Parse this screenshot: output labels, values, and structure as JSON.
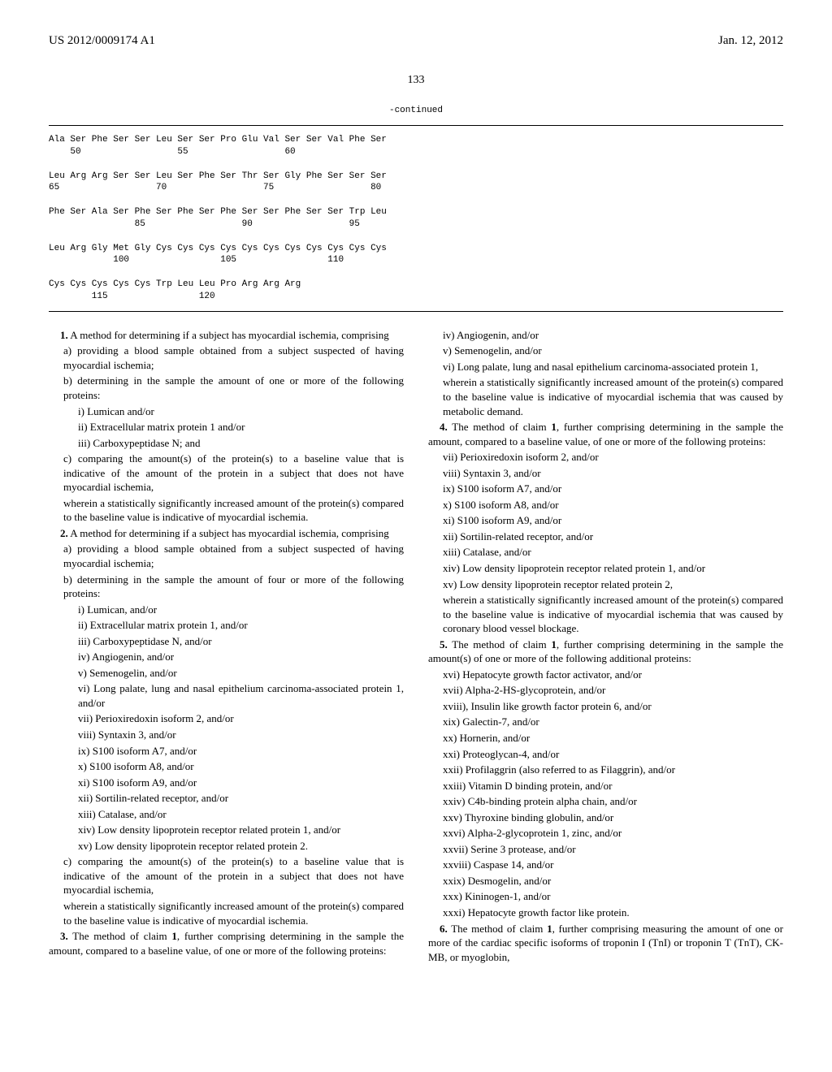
{
  "header": {
    "left": "US 2012/0009174 A1",
    "right": "Jan. 12, 2012"
  },
  "page_number": "133",
  "continued_label": "-continued",
  "sequence": "Ala Ser Phe Ser Ser Leu Ser Ser Pro Glu Val Ser Ser Val Phe Ser\n    50                  55                  60\n\nLeu Arg Arg Ser Ser Leu Ser Phe Ser Thr Ser Gly Phe Ser Ser Ser\n65                  70                  75                  80\n\nPhe Ser Ala Ser Phe Ser Phe Ser Phe Ser Ser Phe Ser Ser Trp Leu\n                85                  90                  95\n\nLeu Arg Gly Met Gly Cys Cys Cys Cys Cys Cys Cys Cys Cys Cys Cys\n            100                 105                 110\n\nCys Cys Cys Cys Cys Trp Leu Leu Pro Arg Arg Arg\n        115                 120",
  "left_col": [
    {
      "cls": "claim-start",
      "t": "1. A method for determining if a subject has myocardial ischemia, comprising"
    },
    {
      "cls": "indent-1",
      "t": "a) providing a blood sample obtained from a subject suspected of having myocardial ischemia;"
    },
    {
      "cls": "indent-1",
      "t": "b) determining in the sample the amount of one or more of the following proteins:"
    },
    {
      "cls": "indent-2",
      "t": "i) Lumican and/or"
    },
    {
      "cls": "indent-2",
      "t": "ii) Extracellular matrix protein 1 and/or"
    },
    {
      "cls": "indent-2",
      "t": "iii) Carboxypeptidase N; and"
    },
    {
      "cls": "indent-1",
      "t": "c) comparing the amount(s) of the protein(s) to a baseline value that is indicative of the amount of the protein in a subject that does not have myocardial ischemia,"
    },
    {
      "cls": "indent-1",
      "t": "wherein a statistically significantly increased amount of the protein(s) compared to the baseline value is indicative of myocardial ischemia."
    },
    {
      "cls": "claim-start",
      "t": "2. A method for determining if a subject has myocardial ischemia, comprising"
    },
    {
      "cls": "indent-1",
      "t": "a) providing a blood sample obtained from a subject suspected of having myocardial ischemia;"
    },
    {
      "cls": "indent-1",
      "t": "b) determining in the sample the amount of four or more of the following proteins:"
    },
    {
      "cls": "indent-2",
      "t": "i) Lumican, and/or"
    },
    {
      "cls": "indent-2",
      "t": "ii) Extracellular matrix protein 1, and/or"
    },
    {
      "cls": "indent-2",
      "t": "iii) Carboxypeptidase N, and/or"
    },
    {
      "cls": "indent-2",
      "t": "iv) Angiogenin, and/or"
    },
    {
      "cls": "indent-2",
      "t": "v) Semenogelin, and/or"
    },
    {
      "cls": "indent-2",
      "t": "vi) Long palate, lung and nasal epithelium carcinoma-associated protein 1, and/or"
    },
    {
      "cls": "indent-2",
      "t": "vii) Perioxiredoxin isoform 2, and/or"
    },
    {
      "cls": "indent-2",
      "t": "viii) Syntaxin 3, and/or"
    },
    {
      "cls": "indent-2",
      "t": "ix) S100 isoform A7, and/or"
    },
    {
      "cls": "indent-2",
      "t": "x) S100 isoform A8, and/or"
    },
    {
      "cls": "indent-2",
      "t": "xi) S100 isoform A9, and/or"
    },
    {
      "cls": "indent-2",
      "t": "xii) Sortilin-related receptor, and/or"
    },
    {
      "cls": "indent-2",
      "t": "xiii) Catalase, and/or"
    },
    {
      "cls": "indent-2",
      "t": "xiv) Low density lipoprotein receptor related protein 1, and/or"
    },
    {
      "cls": "indent-2",
      "t": "xv) Low density lipoprotein receptor related protein 2."
    },
    {
      "cls": "indent-1",
      "t": "c) comparing the amount(s) of the protein(s) to a baseline value that is indicative of the amount of the protein in a subject that does not have myocardial ischemia,"
    },
    {
      "cls": "indent-1",
      "t": "wherein a statistically significantly increased amount of the protein(s) compared to the baseline value is indicative of myocardial ischemia."
    },
    {
      "cls": "claim-start",
      "t": "3. The method of claim 1, further comprising determining in the sample the amount, compared to a baseline value, of one or more of the following proteins:"
    }
  ],
  "right_col": [
    {
      "cls": "indent-1",
      "t": "iv) Angiogenin, and/or"
    },
    {
      "cls": "indent-1",
      "t": "v) Semenogelin, and/or"
    },
    {
      "cls": "indent-1",
      "t": "vi) Long palate, lung and nasal epithelium carcinoma-associated protein 1,"
    },
    {
      "cls": "indent-1",
      "t": "wherein a statistically significantly increased amount of the protein(s) compared to the baseline value is indicative of myocardial ischemia that was caused by metabolic demand."
    },
    {
      "cls": "claim-start",
      "t": "4. The method of claim 1, further comprising determining in the sample the amount, compared to a baseline value, of one or more of the following proteins:"
    },
    {
      "cls": "indent-1",
      "t": "vii) Perioxiredoxin isoform 2, and/or"
    },
    {
      "cls": "indent-1",
      "t": "viii) Syntaxin 3, and/or"
    },
    {
      "cls": "indent-1",
      "t": "ix) S100 isoform A7, and/or"
    },
    {
      "cls": "indent-1",
      "t": "x) S100 isoform A8, and/or"
    },
    {
      "cls": "indent-1",
      "t": "xi) S100 isoform A9, and/or"
    },
    {
      "cls": "indent-1",
      "t": "xii) Sortilin-related receptor, and/or"
    },
    {
      "cls": "indent-1",
      "t": "xiii) Catalase, and/or"
    },
    {
      "cls": "indent-1",
      "t": "xiv) Low density lipoprotein receptor related protein 1, and/or"
    },
    {
      "cls": "indent-1",
      "t": "xv) Low density lipoprotein receptor related protein 2,"
    },
    {
      "cls": "indent-1",
      "t": "wherein a statistically significantly increased amount of the protein(s) compared to the baseline value is indicative of myocardial ischemia that was caused by coronary blood vessel blockage."
    },
    {
      "cls": "claim-start",
      "t": "5. The method of claim 1, further comprising determining in the sample the amount(s) of one or more of the following additional proteins:"
    },
    {
      "cls": "indent-1",
      "t": "xvi) Hepatocyte growth factor activator, and/or"
    },
    {
      "cls": "indent-1",
      "t": "xvii) Alpha-2-HS-glycoprotein, and/or"
    },
    {
      "cls": "indent-1",
      "t": "xviii), Insulin like growth factor protein 6, and/or"
    },
    {
      "cls": "indent-1",
      "t": "xix) Galectin-7, and/or"
    },
    {
      "cls": "indent-1",
      "t": "xx) Hornerin, and/or"
    },
    {
      "cls": "indent-1",
      "t": "xxi) Proteoglycan-4, and/or"
    },
    {
      "cls": "indent-1",
      "t": "xxii) Profilaggrin (also referred to as Filaggrin), and/or"
    },
    {
      "cls": "indent-1",
      "t": "xxiii) Vitamin D binding protein, and/or"
    },
    {
      "cls": "indent-1",
      "t": "xxiv) C4b-binding protein alpha chain, and/or"
    },
    {
      "cls": "indent-1",
      "t": "xxv) Thyroxine binding globulin, and/or"
    },
    {
      "cls": "indent-1",
      "t": "xxvi) Alpha-2-glycoprotein 1, zinc, and/or"
    },
    {
      "cls": "indent-1",
      "t": "xxvii) Serine 3 protease, and/or"
    },
    {
      "cls": "indent-1",
      "t": "xxviii) Caspase 14, and/or"
    },
    {
      "cls": "indent-1",
      "t": "xxix) Desmogelin, and/or"
    },
    {
      "cls": "indent-1",
      "t": "xxx) Kininogen-1, and/or"
    },
    {
      "cls": "indent-1",
      "t": "xxxi) Hepatocyte growth factor like protein."
    },
    {
      "cls": "claim-start",
      "t": "6. The method of claim 1, further comprising measuring the amount of one or more of the cardiac specific isoforms of troponin I (TnI) or troponin T (TnT), CK-MB, or myoglobin,"
    }
  ]
}
